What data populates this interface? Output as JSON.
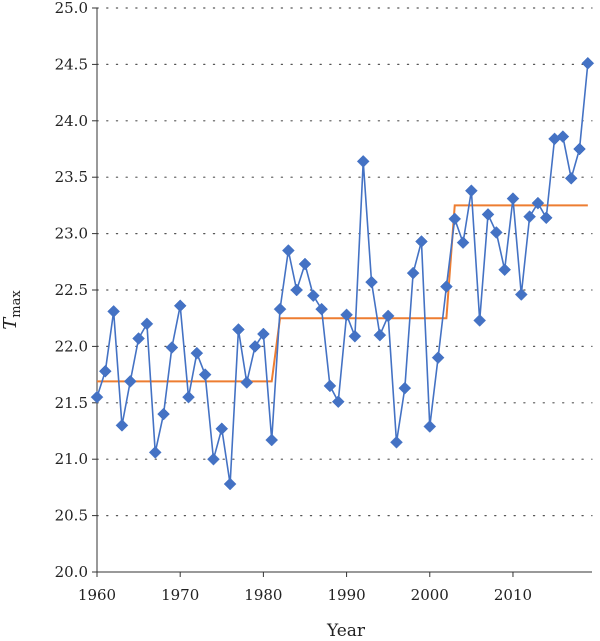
{
  "chart_data": {
    "type": "line",
    "title": "",
    "xlabel": "Year",
    "ylabel": {
      "main": "T",
      "sub": "max"
    },
    "xlim": [
      1960,
      2019.5
    ],
    "ylim": [
      20.0,
      25.0
    ],
    "x_ticks": [
      1960,
      1970,
      1980,
      1990,
      2000,
      2010
    ],
    "x_tick_labels": [
      "1960",
      "1970",
      "1980",
      "1990",
      "2000",
      "2010"
    ],
    "y_ticks": [
      20.0,
      20.5,
      21.0,
      21.5,
      22.0,
      22.5,
      23.0,
      23.5,
      24.0,
      24.5,
      25.0
    ],
    "y_tick_labels": [
      "20.0",
      "20.5",
      "21.0",
      "21.5",
      "22.0",
      "22.5",
      "23.0",
      "23.5",
      "24.0",
      "24.5",
      "25.0"
    ],
    "grid": {
      "horizontal": true,
      "style": "dotted"
    },
    "legend": "none",
    "series": [
      {
        "color": "#4472C4",
        "marker": "diamond",
        "x": [
          1960,
          1961,
          1962,
          1963,
          1964,
          1965,
          1966,
          1967,
          1968,
          1969,
          1970,
          1971,
          1972,
          1973,
          1974,
          1975,
          1976,
          1977,
          1978,
          1979,
          1980,
          1981,
          1982,
          1983,
          1984,
          1985,
          1986,
          1987,
          1988,
          1989,
          1990,
          1991,
          1992,
          1993,
          1994,
          1995,
          1996,
          1997,
          1998,
          1999,
          2000,
          2001,
          2002,
          2003,
          2004,
          2005,
          2006,
          2007,
          2008,
          2009,
          2010,
          2011,
          2012,
          2013,
          2014,
          2015,
          2016,
          2017,
          2018,
          2019
        ],
        "values": [
          21.55,
          21.78,
          22.31,
          21.3,
          21.69,
          22.07,
          22.2,
          21.06,
          21.4,
          21.99,
          22.36,
          21.55,
          21.94,
          21.75,
          21.0,
          21.27,
          20.78,
          22.15,
          21.68,
          22.0,
          22.11,
          21.17,
          22.33,
          22.85,
          22.5,
          22.73,
          22.45,
          22.33,
          21.65,
          21.51,
          22.28,
          22.09,
          23.64,
          22.57,
          22.1,
          22.27,
          21.15,
          21.63,
          22.65,
          22.93,
          21.29,
          21.9,
          22.53,
          23.13,
          22.92,
          23.38,
          22.23,
          23.17,
          23.01,
          22.68,
          23.31,
          22.46,
          23.15,
          23.27,
          23.14,
          23.84,
          23.86,
          23.49,
          23.75,
          24.51
        ]
      },
      {
        "color": "#ED7D31",
        "marker": "none",
        "step": true,
        "segments": [
          {
            "x_start": 1960,
            "x_end": 1981,
            "value": 21.69
          },
          {
            "x_start": 1982,
            "x_end": 2002,
            "value": 22.25
          },
          {
            "x_start": 2003,
            "x_end": 2019,
            "value": 23.25
          }
        ]
      }
    ]
  }
}
